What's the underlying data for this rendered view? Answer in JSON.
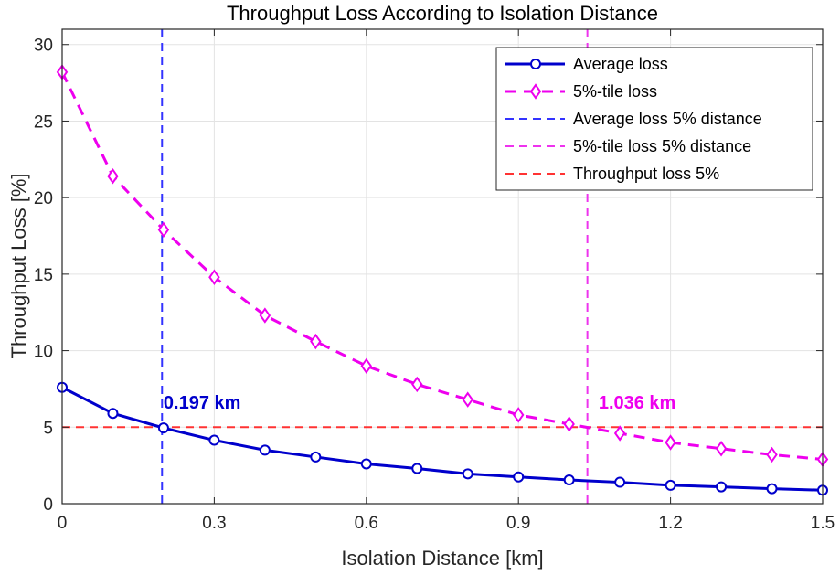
{
  "chart_data": {
    "type": "line",
    "title": "Throughput Loss According to Isolation Distance",
    "xlabel": "Isolation Distance [km]",
    "ylabel": "Throughput Loss [%]",
    "xlim": [
      0,
      1.5
    ],
    "ylim": [
      0,
      31
    ],
    "xticks": [
      0,
      0.3,
      0.6,
      0.9,
      1.2,
      1.5
    ],
    "xtick_labels": [
      "0",
      "0.3",
      "0.6",
      "0.9",
      "1.2",
      "1.5"
    ],
    "yticks": [
      0,
      5,
      10,
      15,
      20,
      25,
      30
    ],
    "ytick_labels": [
      "0",
      "5",
      "10",
      "15",
      "20",
      "25",
      "30"
    ],
    "grid": true,
    "legend_position": "top-right",
    "x": [
      0,
      0.1,
      0.2,
      0.3,
      0.4,
      0.5,
      0.6,
      0.7,
      0.8,
      0.9,
      1.0,
      1.1,
      1.2,
      1.3,
      1.4,
      1.5
    ],
    "series": [
      {
        "name": "Average loss",
        "color": "#0000cc",
        "line": "solid",
        "marker": "circle",
        "values": [
          7.6,
          5.9,
          4.95,
          4.15,
          3.5,
          3.05,
          2.6,
          2.3,
          1.95,
          1.75,
          1.55,
          1.4,
          1.2,
          1.1,
          0.98,
          0.88
        ]
      },
      {
        "name": "5%-tile loss",
        "color": "#ee00ee",
        "line": "dashed",
        "marker": "diamond",
        "values": [
          28.2,
          21.4,
          17.9,
          14.8,
          12.3,
          10.6,
          9.0,
          7.8,
          6.8,
          5.8,
          5.2,
          4.6,
          4.0,
          3.6,
          3.2,
          2.9
        ]
      }
    ],
    "reference_lines": [
      {
        "name": "Average loss 5% distance",
        "orientation": "vertical",
        "value": 0.197,
        "color": "#3333ff",
        "line": "dashed"
      },
      {
        "name": "5%-tile loss 5% distance",
        "orientation": "vertical",
        "value": 1.036,
        "color": "#ee33ee",
        "line": "dashed"
      },
      {
        "name": "Throughput loss 5%",
        "orientation": "horizontal",
        "value": 5,
        "color": "#ff3333",
        "line": "dashed"
      }
    ],
    "annotations": [
      {
        "text": "0.197 km",
        "x": 0.2,
        "y": 6.2,
        "color": "#0000cc"
      },
      {
        "text": "1.036 km",
        "x": 1.058,
        "y": 6.2,
        "color": "#ee00ee"
      }
    ]
  }
}
